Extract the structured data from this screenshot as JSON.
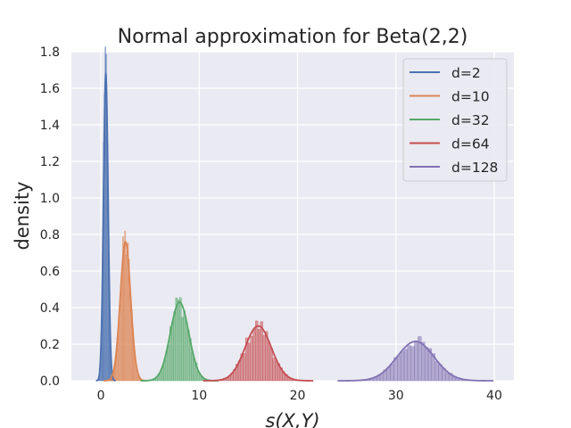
{
  "chart_data": {
    "type": "histogram",
    "title": "Normal approximation for Beta(2,2)",
    "xlabel": "s(X,Y)",
    "ylabel": "density",
    "xlim": [
      -3,
      42
    ],
    "ylim": [
      0,
      1.8
    ],
    "xticks": [
      0,
      10,
      20,
      30,
      40
    ],
    "yticks": [
      0.0,
      0.2,
      0.4,
      0.6,
      0.8,
      1.0,
      1.2,
      1.4,
      1.6,
      1.8
    ],
    "grid": true,
    "legend_position": "top-right",
    "series": [
      {
        "name": "d=2",
        "color": "#4c72b0",
        "mean": 0.5,
        "sd": 0.236,
        "bin_width": 0.08,
        "peak_density": 1.68
      },
      {
        "name": "d=10",
        "color": "#dd8452",
        "mean": 2.5,
        "sd": 0.527,
        "bin_width": 0.1,
        "peak_density": 0.76
      },
      {
        "name": "d=32",
        "color": "#55a868",
        "mean": 8.0,
        "sd": 0.943,
        "bin_width": 0.2,
        "peak_density": 0.43
      },
      {
        "name": "d=64",
        "color": "#c44e52",
        "mean": 16.0,
        "sd": 1.333,
        "bin_width": 0.25,
        "peak_density": 0.3
      },
      {
        "name": "d=128",
        "color": "#8172b3",
        "mean": 32.0,
        "sd": 1.886,
        "bin_width": 0.35,
        "peak_density": 0.215
      }
    ]
  }
}
